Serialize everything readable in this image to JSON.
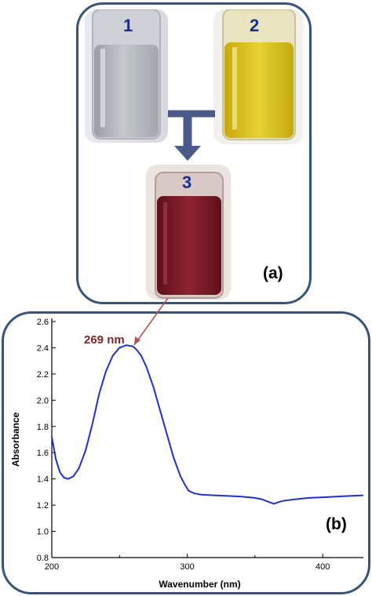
{
  "panel_a": {
    "label": "(a)",
    "vials": [
      {
        "number": "1",
        "liquid_color": "#b8b8bc"
      },
      {
        "number": "2",
        "liquid_color": "#d8c21e"
      },
      {
        "number": "3",
        "liquid_color": "#7e1a24"
      }
    ]
  },
  "panel_b": {
    "label": "(b)"
  },
  "chart_data": {
    "type": "line",
    "xlabel": "Wavenumber (nm)",
    "ylabel": "Absorbance",
    "xlim": [
      200,
      430
    ],
    "ylim": [
      0.8,
      2.6
    ],
    "x_ticks": [
      200,
      300,
      400
    ],
    "y_ticks": [
      0.8,
      1.0,
      1.2,
      1.4,
      1.6,
      1.8,
      2.0,
      2.2,
      2.4,
      2.6
    ],
    "grid": false,
    "annotation": {
      "text": "269 nm",
      "color": "#7a2a2a"
    },
    "series": [
      {
        "color": "#1f2fd0",
        "x": [
          200,
          203,
          206,
          209,
          212,
          216,
          220,
          225,
          230,
          235,
          240,
          245,
          250,
          255,
          260,
          263,
          266,
          270,
          275,
          280,
          285,
          290,
          295,
          298,
          301,
          305,
          310,
          320,
          330,
          340,
          350,
          355,
          360,
          364,
          368,
          372,
          380,
          390,
          400,
          410,
          420,
          430
        ],
        "y": [
          1.72,
          1.55,
          1.45,
          1.41,
          1.4,
          1.42,
          1.48,
          1.62,
          1.82,
          2.05,
          2.22,
          2.34,
          2.4,
          2.42,
          2.41,
          2.38,
          2.34,
          2.25,
          2.1,
          1.92,
          1.74,
          1.56,
          1.42,
          1.36,
          1.31,
          1.29,
          1.28,
          1.275,
          1.27,
          1.265,
          1.255,
          1.245,
          1.225,
          1.21,
          1.225,
          1.235,
          1.245,
          1.255,
          1.26,
          1.265,
          1.27,
          1.275
        ]
      }
    ]
  }
}
